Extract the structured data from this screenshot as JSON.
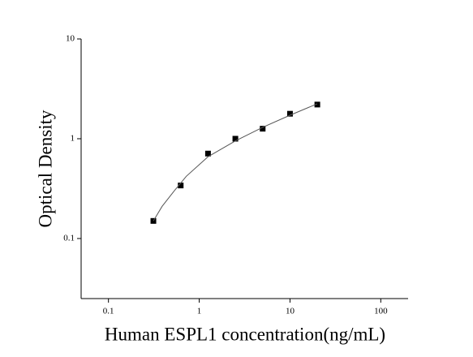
{
  "chart_data": {
    "type": "scatter",
    "x_label": "Human ESPL1 concentration(ng/mL)",
    "y_label": "Optical Density",
    "x_log": true,
    "y_log": true,
    "xlim": [
      0.05,
      200
    ],
    "ylim": [
      0.025,
      10
    ],
    "xticks": [
      0.1,
      1,
      10,
      100
    ],
    "yticks": [
      0.1,
      1,
      10
    ],
    "series": [
      {
        "x": [
          0.3125,
          0.625,
          1.25,
          2.5,
          5,
          10,
          20
        ],
        "values": [
          0.15,
          0.34,
          0.71,
          1.0,
          1.26,
          1.78,
          2.2
        ],
        "color": "#000000",
        "mode": "markers"
      },
      {
        "x": [
          0.3125,
          0.39,
          0.53,
          0.72,
          1.25,
          2.5,
          5,
          10,
          20
        ],
        "values": [
          0.15,
          0.21,
          0.3,
          0.42,
          0.66,
          0.95,
          1.3,
          1.72,
          2.24
        ],
        "color": "#555555",
        "mode": "line"
      }
    ]
  }
}
